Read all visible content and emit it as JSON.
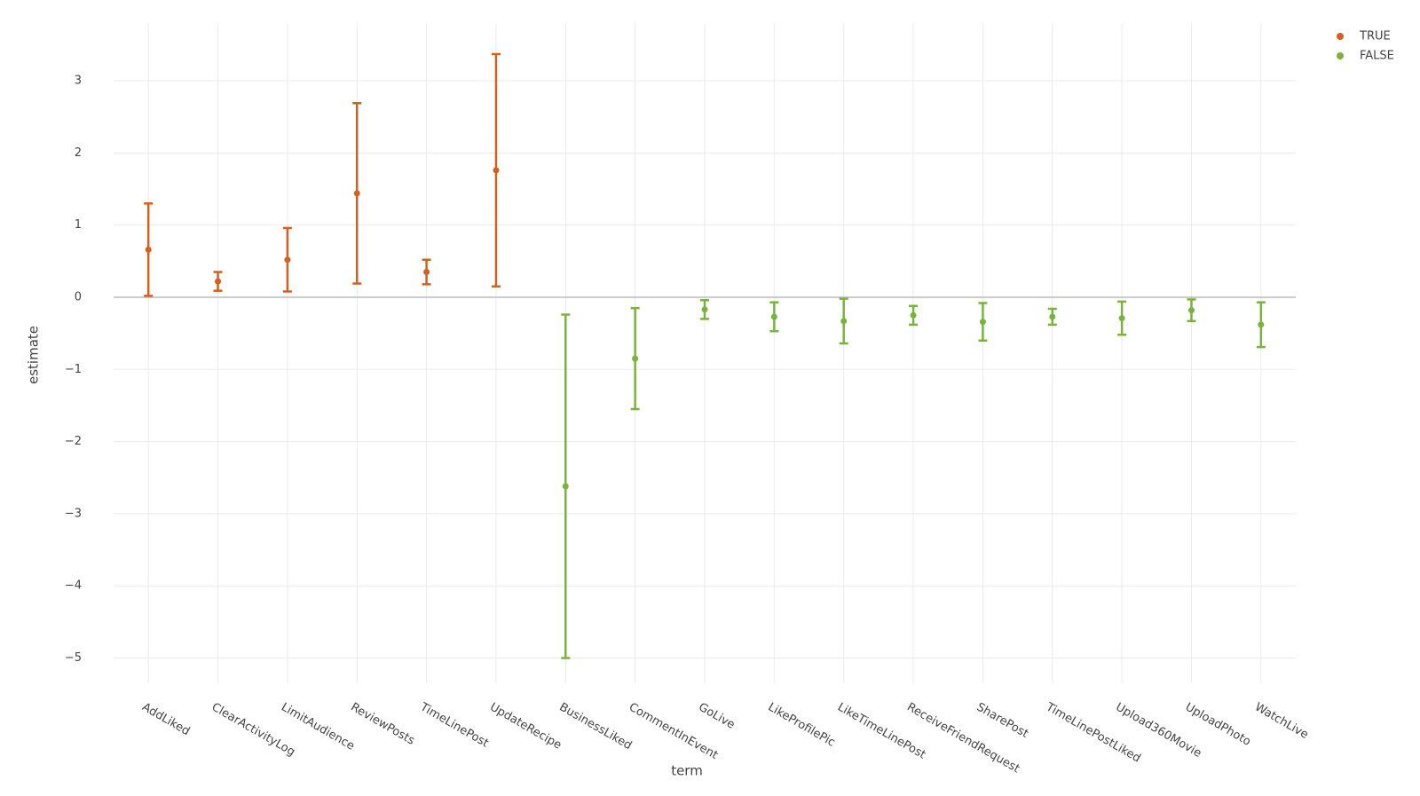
{
  "chart_data": {
    "type": "errorbar",
    "x_label": "term",
    "y_label": "estimate",
    "categories": [
      "AddLiked",
      "ClearActivityLog",
      "LimitAudience",
      "ReviewPosts",
      "TimeLinePost",
      "UpdateRecipe",
      "BusinessLiked",
      "CommentInEvent",
      "GoLive",
      "LikeProfilePic",
      "LikeTimeLinePost",
      "ReceiveFriendRequest",
      "SharePost",
      "TimeLinePostLiked",
      "Upload360Movie",
      "UploadPhoto",
      "WatchLive"
    ],
    "series": [
      {
        "name": "TRUE",
        "color": "#d4601f",
        "values": [
          0.66,
          0.22,
          0.52,
          1.44,
          0.35,
          1.76,
          null,
          null,
          null,
          null,
          null,
          null,
          null,
          null,
          null,
          null,
          null
        ],
        "errors": [
          0.64,
          0.13,
          0.44,
          1.25,
          0.17,
          1.61,
          null,
          null,
          null,
          null,
          null,
          null,
          null,
          null,
          null,
          null,
          null
        ]
      },
      {
        "name": "FALSE",
        "color": "#7ab33c",
        "values": [
          null,
          null,
          null,
          null,
          null,
          null,
          -2.62,
          -0.85,
          -0.17,
          -0.27,
          -0.33,
          -0.25,
          -0.34,
          -0.27,
          -0.29,
          -0.18,
          -0.38
        ],
        "errors": [
          null,
          null,
          null,
          null,
          null,
          null,
          2.38,
          0.7,
          0.13,
          0.2,
          0.31,
          0.13,
          0.26,
          0.11,
          0.23,
          0.15,
          0.31
        ]
      }
    ],
    "ylim": [
      -5.35,
      3.8
    ],
    "yticks": [
      {
        "value": -5,
        "label": "−5"
      },
      {
        "value": -4,
        "label": "−4"
      },
      {
        "value": -3,
        "label": "−3"
      },
      {
        "value": -2,
        "label": "−2"
      },
      {
        "value": -1,
        "label": "−1"
      },
      0,
      1,
      2,
      3
    ],
    "grid": true,
    "zeroline": true,
    "legend": "top-right"
  }
}
